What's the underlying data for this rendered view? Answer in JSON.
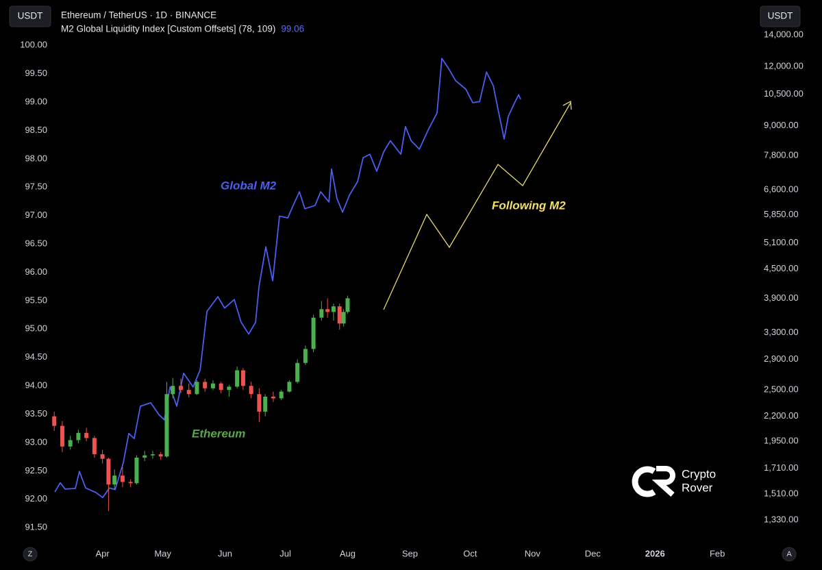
{
  "header": {
    "left_currency": "USDT",
    "right_currency": "USDT",
    "symbol": "Ethereum / TetherUS · 1D · BINANCE",
    "indicator": "M2 Global Liquidity Index [Custom Offsets] (78, 109)",
    "indicator_value": 99.06,
    "indicator_color": "#5b6cf5"
  },
  "chart_data": [
    {
      "type": "line",
      "color": "#4a5ef0",
      "xlim": [
        -20,
        355
      ],
      "xticks": [
        {
          "value": 31,
          "label": "Apr"
        },
        {
          "value": 61,
          "label": "May"
        },
        {
          "value": 92,
          "label": "Jun"
        },
        {
          "value": 122,
          "label": "Jul"
        },
        {
          "value": 153,
          "label": "Aug"
        },
        {
          "value": 184,
          "label": "Sep"
        },
        {
          "value": 214,
          "label": "Oct"
        },
        {
          "value": 245,
          "label": "Nov"
        },
        {
          "value": 275,
          "label": "Dec"
        },
        {
          "value": 306,
          "label": "2026"
        },
        {
          "value": 337,
          "label": "Feb"
        }
      ],
      "ylim": [
        91.26,
        100.8
      ],
      "yticks": [
        {
          "value": 91.5,
          "label": "91.50"
        },
        {
          "value": 92,
          "label": "92.00"
        },
        {
          "value": 92.5,
          "label": "92.50"
        },
        {
          "value": 93,
          "label": "93.00"
        },
        {
          "value": 93.5,
          "label": "93.50"
        },
        {
          "value": 94,
          "label": "94.00"
        },
        {
          "value": 94.5,
          "label": "94.50"
        },
        {
          "value": 95,
          "label": "95.00"
        },
        {
          "value": 95.5,
          "label": "95.50"
        },
        {
          "value": 96,
          "label": "96.00"
        },
        {
          "value": 96.5,
          "label": "96.50"
        },
        {
          "value": 97,
          "label": "97.00"
        },
        {
          "value": 97.5,
          "label": "97.50"
        },
        {
          "value": 98,
          "label": "98.00"
        },
        {
          "value": 98.5,
          "label": "98.50"
        },
        {
          "value": 99,
          "label": "99.00"
        },
        {
          "value": 99.5,
          "label": "99.50"
        },
        {
          "value": 100,
          "label": "100.00"
        }
      ],
      "x": [
        7.3,
        10,
        12.4,
        17.5,
        19.5,
        22.6,
        27.7,
        31.1,
        34.5,
        37.3,
        41.4,
        44.1,
        46.8,
        49.9,
        55,
        59.1,
        61.8,
        64.6,
        68,
        71.4,
        76.1,
        79.6,
        83,
        88.4,
        91.8,
        96.6,
        100,
        103.8,
        107.2,
        108.9,
        112.3,
        115.7,
        119.1,
        123.2,
        125.9,
        129,
        131.7,
        136.8,
        139.6,
        143.7,
        145,
        147.7,
        150.5,
        153.9,
        158,
        160.7,
        164.1,
        167.5,
        170.9,
        174.3,
        179.5,
        181.8,
        184.6,
        188.7,
        193.1,
        197.5,
        199.9,
        203.3,
        206.7,
        211.8,
        215.3,
        218.7,
        222.1,
        225.5,
        228.2,
        230.9,
        233,
        235.7,
        238.1,
        239.1
      ],
      "values": [
        92.13,
        92.29,
        92.18,
        92.19,
        92.49,
        92.2,
        92.12,
        92.03,
        92.2,
        92.17,
        92.65,
        93.16,
        93.07,
        93.64,
        93.7,
        93.49,
        93.4,
        93.98,
        93.64,
        94.22,
        93.98,
        94.28,
        95.31,
        95.57,
        95.37,
        95.52,
        95.12,
        94.91,
        95.12,
        95.75,
        96.45,
        95.85,
        96.99,
        96.96,
        97.18,
        97.42,
        97.12,
        97.18,
        97.42,
        97.24,
        97.82,
        97.3,
        97.06,
        97.36,
        97.6,
        98.02,
        98.08,
        97.78,
        98.12,
        98.32,
        98.08,
        98.57,
        98.32,
        98.17,
        98.51,
        98.81,
        99.77,
        99.59,
        99.38,
        99.23,
        98.99,
        99.01,
        99.53,
        99.29,
        98.81,
        98.35,
        98.75,
        98.96,
        99.13,
        99.05
      ]
    },
    {
      "type": "candlestick",
      "up_color": "#4caf50",
      "down_color": "#ef5350",
      "log_scale": true,
      "y2lim": [
        1200,
        16580
      ],
      "y2ticks": [
        {
          "value": 1330,
          "label": "1,330.00"
        },
        {
          "value": 1510,
          "label": "1,510.00"
        },
        {
          "value": 1710,
          "label": "1,710.00"
        },
        {
          "value": 1950,
          "label": "1,950.00"
        },
        {
          "value": 2200,
          "label": "2,200.00"
        },
        {
          "value": 2500,
          "label": "2,500.00"
        },
        {
          "value": 2900,
          "label": "2,900.00"
        },
        {
          "value": 3300,
          "label": "3,300.00"
        },
        {
          "value": 3900,
          "label": "3,900.00"
        },
        {
          "value": 4500,
          "label": "4,500.00"
        },
        {
          "value": 5100,
          "label": "5,100.00"
        },
        {
          "value": 5850,
          "label": "5,850.00"
        },
        {
          "value": 6600,
          "label": "6,600.00"
        },
        {
          "value": 7800,
          "label": "7,800.00"
        },
        {
          "value": 9000,
          "label": "9,000.00"
        },
        {
          "value": 10500,
          "label": "10,500.00"
        },
        {
          "value": 12000,
          "label": "12,000.00"
        },
        {
          "value": 14000,
          "label": "14,000.00"
        }
      ],
      "x": [
        7,
        11,
        15,
        19,
        23,
        27,
        31,
        34,
        37,
        41,
        45,
        48,
        52,
        56,
        60,
        63,
        66,
        70,
        74,
        78,
        82,
        86,
        90,
        94,
        98,
        101,
        105,
        109,
        112,
        116,
        120,
        124,
        128,
        132,
        136,
        140,
        143,
        146,
        149,
        151,
        153
      ],
      "open": [
        2200,
        2100,
        1900,
        1960,
        2030,
        1980,
        1830,
        1790,
        1580,
        1650,
        1600,
        1590,
        1800,
        1820,
        1830,
        1810,
        2450,
        2550,
        2500,
        2450,
        2600,
        2520,
        2580,
        2500,
        2540,
        2750,
        2550,
        2450,
        2250,
        2420,
        2400,
        2480,
        2600,
        2850,
        3050,
        3550,
        3700,
        3650,
        3750,
        3450,
        3650
      ],
      "high": [
        2250,
        2150,
        2000,
        2060,
        2080,
        2000,
        1870,
        1800,
        1700,
        1720,
        1620,
        1820,
        1860,
        1860,
        1850,
        2600,
        2650,
        2640,
        2580,
        2620,
        2640,
        2620,
        2600,
        2560,
        2800,
        2780,
        2600,
        2520,
        2450,
        2480,
        2500,
        2620,
        2900,
        3100,
        3600,
        3850,
        3900,
        3800,
        3800,
        3700,
        3950
      ],
      "low": [
        2050,
        1850,
        1870,
        1930,
        1950,
        1800,
        1750,
        1390,
        1540,
        1560,
        1560,
        1580,
        1770,
        1790,
        1780,
        1800,
        2400,
        2460,
        2410,
        2440,
        2480,
        2500,
        2460,
        2420,
        2520,
        2500,
        2400,
        2140,
        2200,
        2360,
        2380,
        2470,
        2580,
        2820,
        3000,
        3500,
        3550,
        3500,
        3350,
        3400,
        3620
      ],
      "close": [
        2100,
        1900,
        1960,
        2030,
        1980,
        1830,
        1790,
        1580,
        1650,
        1600,
        1590,
        1800,
        1820,
        1830,
        1810,
        2450,
        2550,
        2500,
        2450,
        2600,
        2520,
        2580,
        2500,
        2540,
        2750,
        2550,
        2450,
        2250,
        2420,
        2400,
        2480,
        2600,
        2850,
        3050,
        3550,
        3700,
        3650,
        3750,
        3450,
        3650,
        3900
      ]
    }
  ],
  "annotations": [
    {
      "text": "Global M2",
      "color": "#4a5ef0"
    },
    {
      "text": "Ethereum",
      "color": "#5aa64a"
    },
    {
      "text": "Following M2",
      "color": "#f2e06a"
    }
  ],
  "logo": {
    "line1": "Crypto",
    "line2": "Rover"
  },
  "buttons": {
    "left": "Z",
    "right": "A"
  }
}
